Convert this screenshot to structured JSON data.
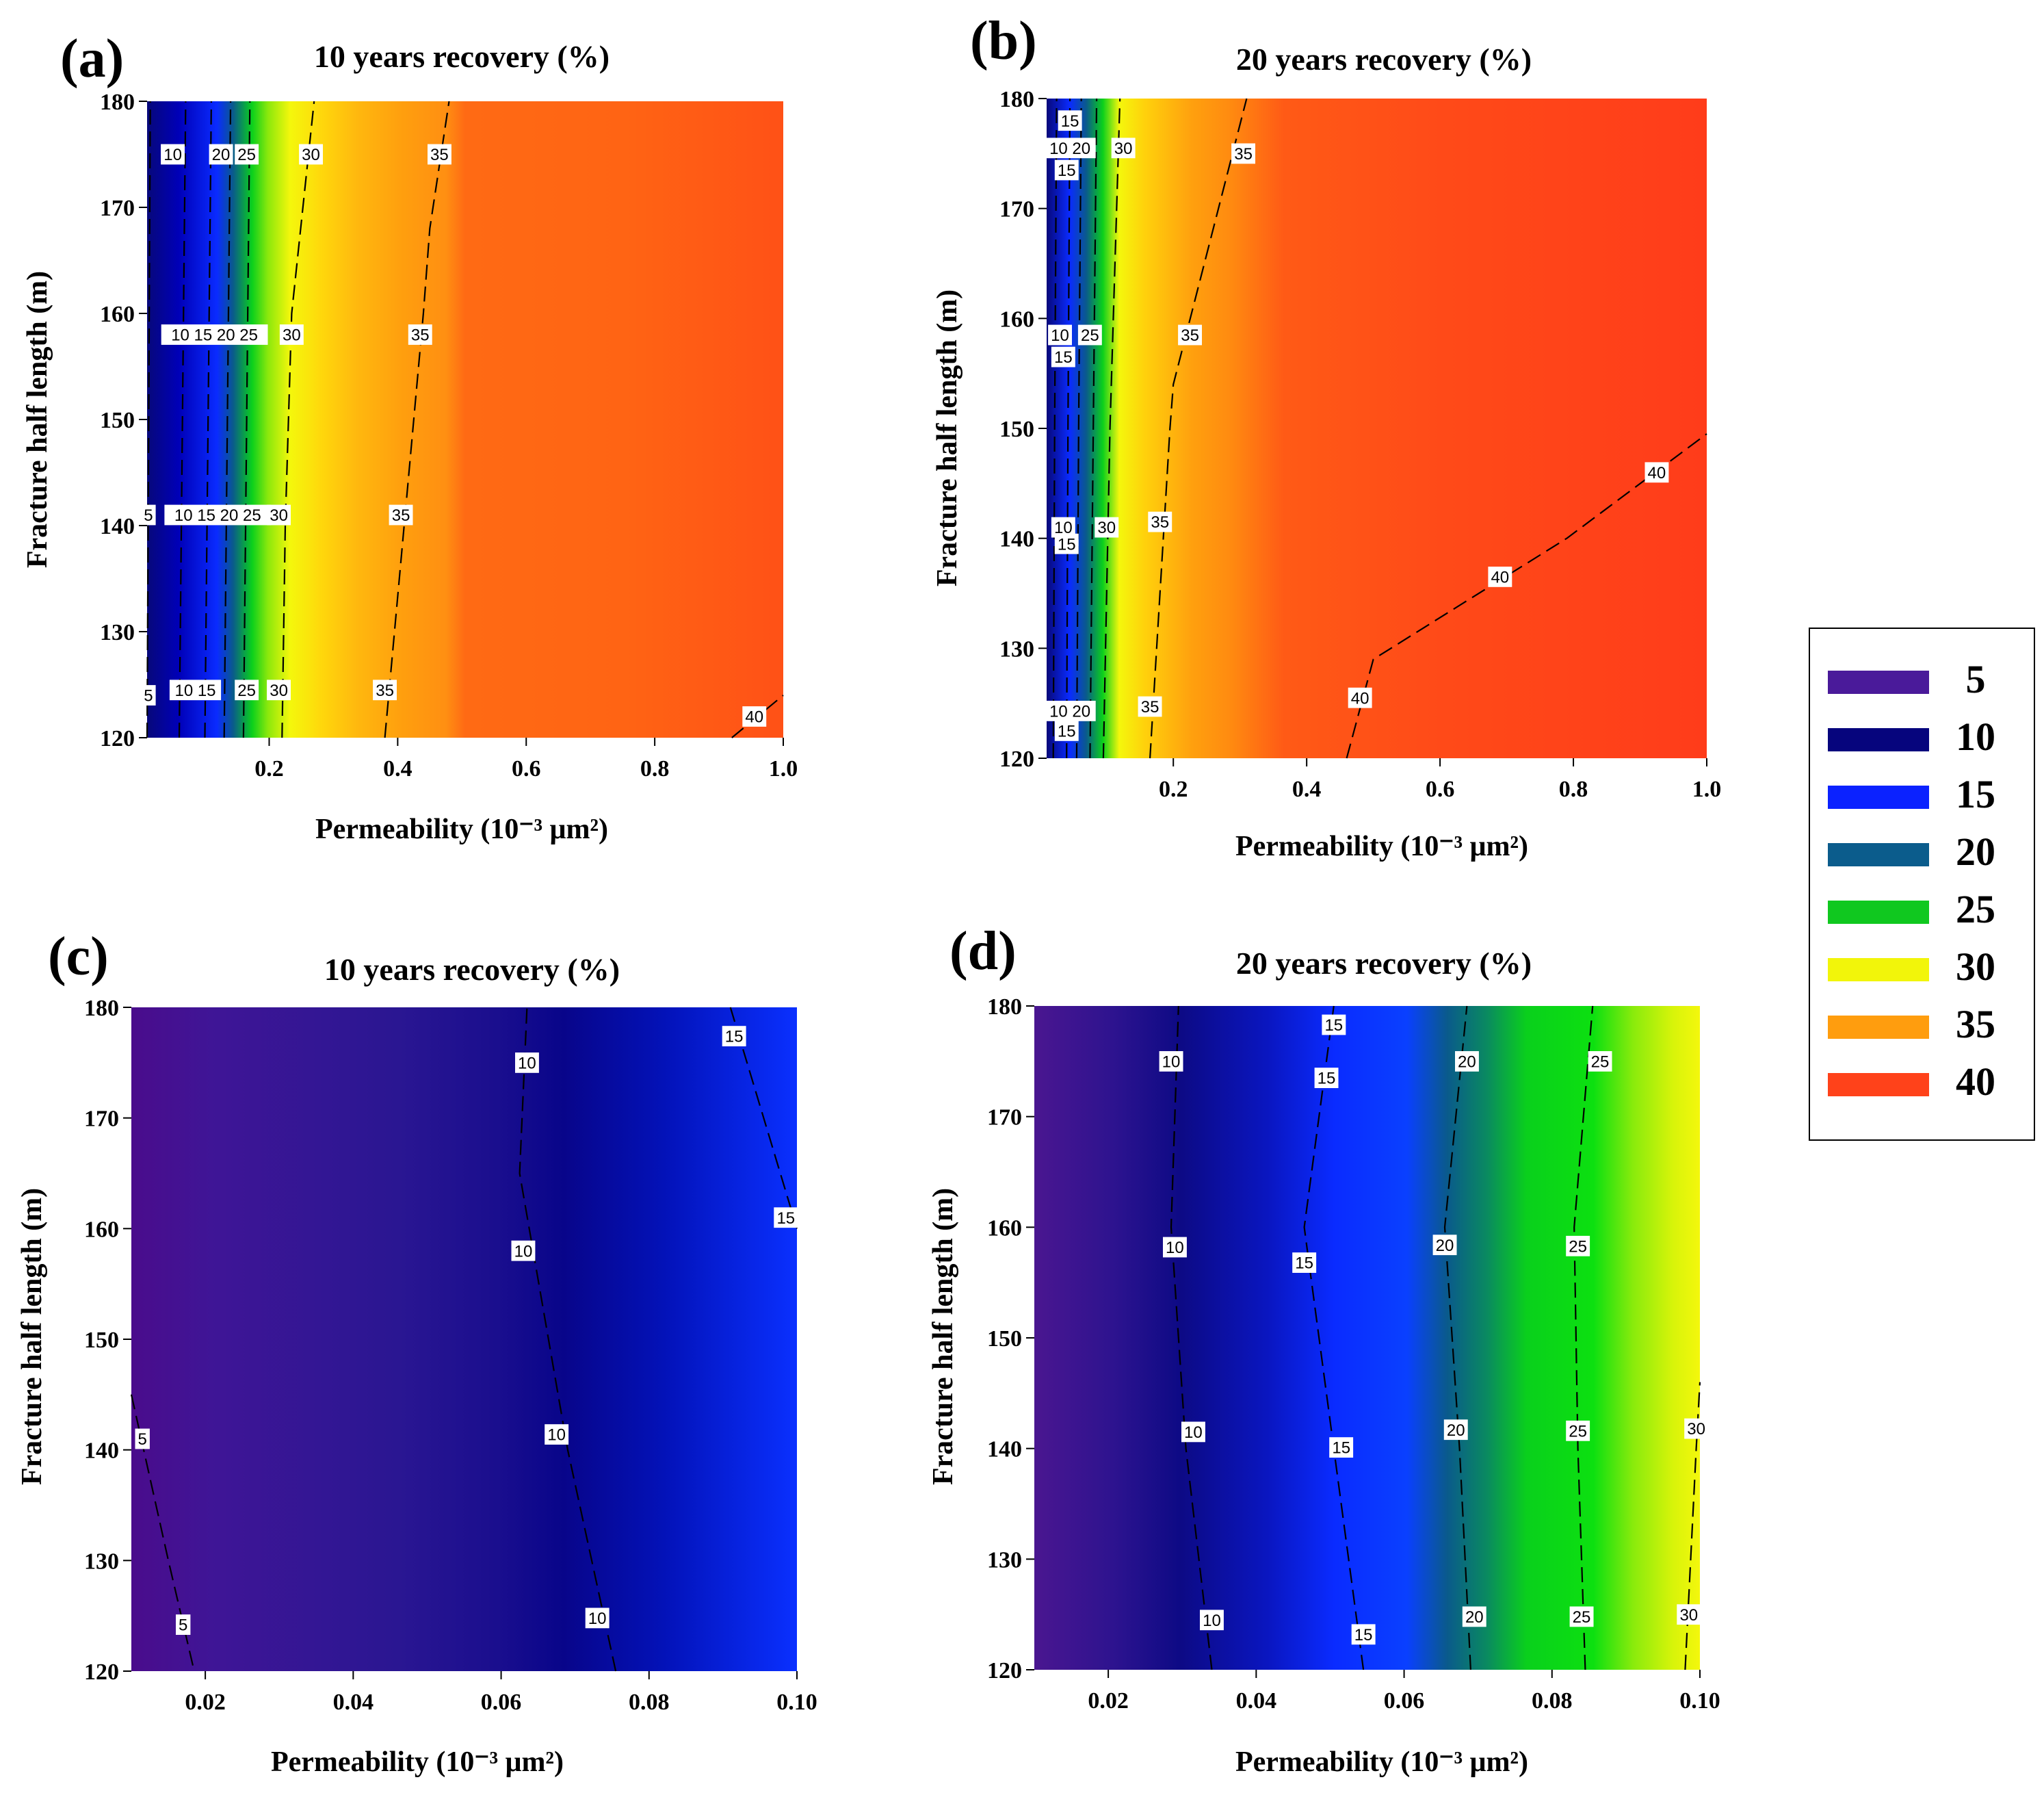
{
  "figure": {
    "colorbar": {
      "values": [
        "5",
        "10",
        "15",
        "20",
        "25",
        "30",
        "35",
        "40"
      ],
      "colors": [
        "#4a1a9a",
        "#06057d",
        "#0b22ff",
        "#0b5c8c",
        "#10c81f",
        "#f2f50a",
        "#ff9d0e",
        "#ff421a"
      ]
    }
  },
  "chart_data": [
    {
      "type": "heatmap",
      "panel": "(a)",
      "title": "10 years recovery (%)",
      "xlabel": "Permeability (10⁻³ μm²)",
      "ylabel": "Fracture half length (m)",
      "xlim": [
        0.01,
        1.0
      ],
      "ylim": [
        120,
        180
      ],
      "xticks": [
        "0.2",
        "0.4",
        "0.6",
        "0.8",
        "1.0"
      ],
      "yticks": [
        "120",
        "130",
        "140",
        "150",
        "160",
        "170",
        "180"
      ],
      "levels": [
        5,
        10,
        15,
        20,
        25,
        30,
        35,
        40
      ],
      "contours": [
        {
          "level": "5",
          "points": [
            [
              0.01,
              120
            ],
            [
              0.015,
              180
            ]
          ]
        },
        {
          "level": "10",
          "points": [
            [
              0.06,
              120
            ],
            [
              0.065,
              150
            ],
            [
              0.07,
              180
            ]
          ]
        },
        {
          "level": "15",
          "points": [
            [
              0.1,
              120
            ],
            [
              0.105,
              150
            ],
            [
              0.11,
              180
            ]
          ]
        },
        {
          "level": "20",
          "points": [
            [
              0.13,
              120
            ],
            [
              0.135,
              150
            ],
            [
              0.14,
              180
            ]
          ]
        },
        {
          "level": "25",
          "points": [
            [
              0.16,
              120
            ],
            [
              0.165,
              150
            ],
            [
              0.17,
              180
            ]
          ]
        },
        {
          "level": "30",
          "points": [
            [
              0.22,
              120
            ],
            [
              0.225,
              140
            ],
            [
              0.235,
              160
            ],
            [
              0.27,
              180
            ]
          ]
        },
        {
          "level": "35",
          "points": [
            [
              0.38,
              120
            ],
            [
              0.41,
              140
            ],
            [
              0.44,
              160
            ],
            [
              0.45,
              168
            ],
            [
              0.48,
              180
            ]
          ]
        },
        {
          "level": "40",
          "points": [
            [
              0.92,
              120
            ],
            [
              0.96,
              122
            ],
            [
              1.0,
              124
            ]
          ]
        }
      ],
      "labels": [
        {
          "text": "10",
          "x": 0.05,
          "y": 175
        },
        {
          "text": "20",
          "x": 0.125,
          "y": 175
        },
        {
          "text": "25",
          "x": 0.165,
          "y": 175
        },
        {
          "text": "30",
          "x": 0.265,
          "y": 175
        },
        {
          "text": "35",
          "x": 0.465,
          "y": 175
        },
        {
          "text": "10 15 20 25",
          "x": 0.115,
          "y": 158
        },
        {
          "text": "30",
          "x": 0.235,
          "y": 158
        },
        {
          "text": "35",
          "x": 0.435,
          "y": 158
        },
        {
          "text": "5",
          "x": 0.012,
          "y": 141
        },
        {
          "text": "10 15 20 25",
          "x": 0.12,
          "y": 141
        },
        {
          "text": "30",
          "x": 0.215,
          "y": 141
        },
        {
          "text": "35",
          "x": 0.405,
          "y": 141
        },
        {
          "text": "5",
          "x": 0.012,
          "y": 124
        },
        {
          "text": "10 15",
          "x": 0.085,
          "y": 124.5
        },
        {
          "text": "25",
          "x": 0.165,
          "y": 124.5
        },
        {
          "text": "30",
          "x": 0.215,
          "y": 124.5
        },
        {
          "text": "35",
          "x": 0.38,
          "y": 124.5
        },
        {
          "text": "40",
          "x": 0.955,
          "y": 122
        }
      ]
    },
    {
      "type": "heatmap",
      "panel": "(b)",
      "title": "20 years recovery (%)",
      "xlabel": "Permeability (10⁻³ μm²)",
      "ylabel": "Fracture half length (m)",
      "xlim": [
        0.01,
        1.0
      ],
      "ylim": [
        120,
        180
      ],
      "xticks": [
        "0.2",
        "0.4",
        "0.6",
        "0.8",
        "1.0"
      ],
      "yticks": [
        "120",
        "130",
        "140",
        "150",
        "160",
        "170",
        "180"
      ],
      "levels": [
        5,
        10,
        15,
        20,
        25,
        30,
        35,
        40
      ],
      "contours": [
        {
          "level": "10",
          "points": [
            [
              0.02,
              120
            ],
            [
              0.022,
              150
            ],
            [
              0.025,
              180
            ]
          ]
        },
        {
          "level": "15",
          "points": [
            [
              0.04,
              120
            ],
            [
              0.042,
              150
            ],
            [
              0.045,
              180
            ]
          ]
        },
        {
          "level": "20",
          "points": [
            [
              0.055,
              120
            ],
            [
              0.058,
              150
            ],
            [
              0.062,
              180
            ]
          ]
        },
        {
          "level": "25",
          "points": [
            [
              0.075,
              120
            ],
            [
              0.08,
              150
            ],
            [
              0.085,
              180
            ]
          ]
        },
        {
          "level": "30",
          "points": [
            [
              0.095,
              120
            ],
            [
              0.105,
              150
            ],
            [
              0.12,
              180
            ]
          ]
        },
        {
          "level": "35",
          "points": [
            [
              0.165,
              120
            ],
            [
              0.18,
              135
            ],
            [
              0.195,
              150
            ],
            [
              0.2,
              154
            ],
            [
              0.31,
              180
            ]
          ]
        },
        {
          "level": "40",
          "points": [
            [
              0.46,
              120
            ],
            [
              0.5,
              129
            ],
            [
              0.79,
              140
            ],
            [
              1.0,
              149.5
            ]
          ]
        }
      ],
      "labels": [
        {
          "text": "15",
          "x": 0.045,
          "y": 178
        },
        {
          "text": "10 20",
          "x": 0.045,
          "y": 175.5
        },
        {
          "text": "15",
          "x": 0.04,
          "y": 173.5
        },
        {
          "text": "30",
          "x": 0.125,
          "y": 175.5
        },
        {
          "text": "35",
          "x": 0.305,
          "y": 175
        },
        {
          "text": "10",
          "x": 0.03,
          "y": 158.5
        },
        {
          "text": "25",
          "x": 0.075,
          "y": 158.5
        },
        {
          "text": "15",
          "x": 0.035,
          "y": 156.5
        },
        {
          "text": "35",
          "x": 0.225,
          "y": 158.5
        },
        {
          "text": "10",
          "x": 0.035,
          "y": 141
        },
        {
          "text": "15",
          "x": 0.04,
          "y": 139.5
        },
        {
          "text": "30",
          "x": 0.1,
          "y": 141
        },
        {
          "text": "35",
          "x": 0.18,
          "y": 141.5
        },
        {
          "text": "40",
          "x": 0.925,
          "y": 146
        },
        {
          "text": "40",
          "x": 0.69,
          "y": 136.5
        },
        {
          "text": "10 20",
          "x": 0.045,
          "y": 124.3
        },
        {
          "text": "15",
          "x": 0.04,
          "y": 122.5
        },
        {
          "text": "35",
          "x": 0.165,
          "y": 124.7
        },
        {
          "text": "40",
          "x": 0.48,
          "y": 125.5
        }
      ]
    },
    {
      "type": "heatmap",
      "panel": "(c)",
      "title": "10 years recovery (%)",
      "xlabel": "Permeability (10⁻³ μm²)",
      "ylabel": "Fracture half length (m)",
      "xlim": [
        0.01,
        0.1
      ],
      "ylim": [
        120,
        180
      ],
      "xticks": [
        "0.02",
        "0.04",
        "0.06",
        "0.08",
        "0.10"
      ],
      "yticks": [
        "120",
        "130",
        "140",
        "150",
        "160",
        "170",
        "180"
      ],
      "levels": [
        5,
        10,
        15,
        20,
        25,
        30,
        35,
        40
      ],
      "contours": [
        {
          "level": "5",
          "points": [
            [
              0.01,
              145
            ],
            [
              0.015,
              130
            ],
            [
              0.0185,
              120
            ]
          ]
        },
        {
          "level": "10",
          "points": [
            [
              0.0755,
              120
            ],
            [
              0.069,
              140
            ],
            [
              0.0625,
              165
            ],
            [
              0.0635,
              180
            ]
          ]
        },
        {
          "level": "15",
          "points": [
            [
              0.091,
              180
            ],
            [
              0.1,
              160
            ]
          ]
        }
      ],
      "labels": [
        {
          "text": "5",
          "x": 0.0115,
          "y": 141
        },
        {
          "text": "5",
          "x": 0.017,
          "y": 124.2
        },
        {
          "text": "10",
          "x": 0.0635,
          "y": 175
        },
        {
          "text": "10",
          "x": 0.063,
          "y": 158
        },
        {
          "text": "10",
          "x": 0.0675,
          "y": 141.4
        },
        {
          "text": "10",
          "x": 0.073,
          "y": 124.8
        },
        {
          "text": "15",
          "x": 0.0915,
          "y": 177.4
        },
        {
          "text": "15",
          "x": 0.0985,
          "y": 161
        }
      ]
    },
    {
      "type": "heatmap",
      "panel": "(d)",
      "title": "20 years recovery (%)",
      "xlabel": "Permeability (10⁻³ μm²)",
      "ylabel": "Fracture half length (m)",
      "xlim": [
        0.01,
        0.1
      ],
      "ylim": [
        120,
        180
      ],
      "xticks": [
        "0.02",
        "0.04",
        "0.06",
        "0.08",
        "0.10"
      ],
      "yticks": [
        "120",
        "130",
        "140",
        "150",
        "160",
        "170",
        "180"
      ],
      "levels": [
        5,
        10,
        15,
        20,
        25,
        30,
        35,
        40
      ],
      "contours": [
        {
          "level": "10",
          "points": [
            [
              0.034,
              120
            ],
            [
              0.0305,
              140
            ],
            [
              0.0285,
              160
            ],
            [
              0.0295,
              180
            ]
          ]
        },
        {
          "level": "15",
          "points": [
            [
              0.0545,
              120
            ],
            [
              0.0505,
              140
            ],
            [
              0.0465,
              160
            ],
            [
              0.0505,
              180
            ]
          ]
        },
        {
          "level": "20",
          "points": [
            [
              0.069,
              120
            ],
            [
              0.0675,
              140
            ],
            [
              0.0655,
              160
            ],
            [
              0.0685,
              180
            ]
          ]
        },
        {
          "level": "25",
          "points": [
            [
              0.0845,
              120
            ],
            [
              0.0835,
              140
            ],
            [
              0.083,
              160
            ],
            [
              0.0855,
              180
            ]
          ]
        },
        {
          "level": "30",
          "points": [
            [
              0.098,
              120
            ],
            [
              0.0995,
              140
            ],
            [
              0.1,
              146
            ]
          ]
        }
      ],
      "labels": [
        {
          "text": "10",
          "x": 0.0285,
          "y": 175
        },
        {
          "text": "10",
          "x": 0.029,
          "y": 158.2
        },
        {
          "text": "10",
          "x": 0.0315,
          "y": 141.5
        },
        {
          "text": "10",
          "x": 0.034,
          "y": 124.5
        },
        {
          "text": "15",
          "x": 0.0505,
          "y": 178.3
        },
        {
          "text": "15",
          "x": 0.0495,
          "y": 173.5
        },
        {
          "text": "15",
          "x": 0.0465,
          "y": 156.8
        },
        {
          "text": "15",
          "x": 0.0515,
          "y": 140.1
        },
        {
          "text": "15",
          "x": 0.0545,
          "y": 123.2
        },
        {
          "text": "20",
          "x": 0.0685,
          "y": 175
        },
        {
          "text": "20",
          "x": 0.0655,
          "y": 158.4
        },
        {
          "text": "20",
          "x": 0.067,
          "y": 141.7
        },
        {
          "text": "20",
          "x": 0.0695,
          "y": 124.8
        },
        {
          "text": "25",
          "x": 0.0865,
          "y": 175
        },
        {
          "text": "25",
          "x": 0.0835,
          "y": 158.3
        },
        {
          "text": "25",
          "x": 0.0835,
          "y": 141.6
        },
        {
          "text": "25",
          "x": 0.084,
          "y": 124.8
        },
        {
          "text": "30",
          "x": 0.0995,
          "y": 141.8
        },
        {
          "text": "30",
          "x": 0.0985,
          "y": 125
        }
      ]
    }
  ]
}
